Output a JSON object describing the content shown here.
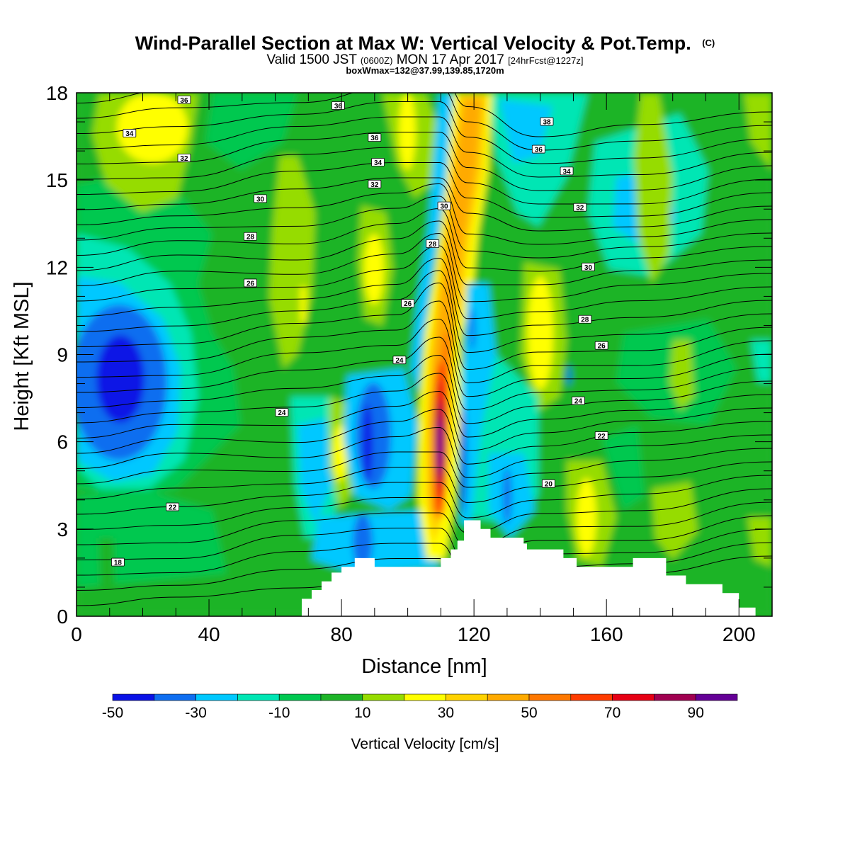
{
  "chart_data": {
    "type": "heatmap",
    "title": "Wind-Parallel Section at Max W: Vertical Velocity & Pot.Temp.",
    "title_mark": "(C)",
    "subtitle_parts": {
      "a": "Valid 1500 JST ",
      "b": "(0600Z)",
      "c": " MON 17 Apr 2017 ",
      "d": "[24hrFcst@1227z]"
    },
    "info_line": "boxWmax=132@37.99,139.85,1720m",
    "xlabel": "Distance [nm]",
    "ylabel": "Height [Kft MSL]",
    "xlim": [
      0,
      210
    ],
    "ylim": [
      0,
      18
    ],
    "x_ticks": [
      0,
      40,
      80,
      120,
      160,
      200
    ],
    "x_tick_labels": [
      "0",
      "40",
      "80",
      "120",
      "160",
      "200"
    ],
    "y_ticks": [
      0,
      3,
      6,
      9,
      12,
      15,
      18
    ],
    "y_tick_labels": [
      "0",
      "3",
      "6",
      "9",
      "12",
      "15",
      "18"
    ],
    "colorbar": {
      "title": "Vertical Velocity [cm/s]",
      "levels": [
        -50,
        -40,
        -30,
        -20,
        -10,
        0,
        10,
        20,
        30,
        40,
        50,
        60,
        70,
        80,
        90,
        100
      ],
      "tick_values": [
        -50,
        -30,
        -10,
        10,
        30,
        50,
        70,
        90
      ],
      "tick_labels": [
        "-50",
        "-30",
        "-10",
        "10",
        "30",
        "50",
        "70",
        "90"
      ],
      "colors": [
        "#0a12e6",
        "#0f6ef0",
        "#00c8ff",
        "#00e6b4",
        "#00c850",
        "#1eb428",
        "#96dc00",
        "#ffff00",
        "#ffd200",
        "#ffaa00",
        "#ff7800",
        "#ff3c00",
        "#e60014",
        "#a00050",
        "#640096"
      ]
    },
    "terrain": [
      [
        68,
        0.6
      ],
      [
        71,
        0.6
      ],
      [
        71,
        0.9
      ],
      [
        74,
        0.9
      ],
      [
        74,
        1.2
      ],
      [
        77,
        1.2
      ],
      [
        77,
        1.5
      ],
      [
        80,
        1.5
      ],
      [
        80,
        1.7
      ],
      [
        84,
        1.7
      ],
      [
        84,
        2.0
      ],
      [
        90,
        2.0
      ],
      [
        90,
        1.7
      ],
      [
        110,
        1.7
      ],
      [
        110,
        2.0
      ],
      [
        113,
        2.0
      ],
      [
        113,
        2.3
      ],
      [
        115,
        2.3
      ],
      [
        115,
        2.6
      ],
      [
        117,
        2.6
      ],
      [
        117,
        3.3
      ],
      [
        122,
        3.3
      ],
      [
        122,
        3.0
      ],
      [
        125,
        3.0
      ],
      [
        125,
        2.7
      ],
      [
        135,
        2.7
      ],
      [
        135,
        2.5
      ],
      [
        136,
        2.5
      ],
      [
        136,
        2.3
      ],
      [
        147,
        2.3
      ],
      [
        147,
        2.0
      ],
      [
        151,
        2.0
      ],
      [
        151,
        1.7
      ],
      [
        168,
        1.7
      ],
      [
        168,
        2.0
      ],
      [
        178,
        2.0
      ],
      [
        178,
        1.4
      ],
      [
        184,
        1.4
      ],
      [
        184,
        1.1
      ],
      [
        195,
        1.1
      ],
      [
        195,
        0.8
      ],
      [
        200,
        0.8
      ],
      [
        200,
        0.3
      ],
      [
        205,
        0.3
      ]
    ],
    "contour_labels": [
      {
        "text": "36",
        "x": 32.5,
        "y": 17.75
      },
      {
        "text": "36",
        "x": 79,
        "y": 17.55
      },
      {
        "text": "38",
        "x": 142,
        "y": 17.0
      },
      {
        "text": "34",
        "x": 16,
        "y": 16.6
      },
      {
        "text": "36",
        "x": 90,
        "y": 16.45
      },
      {
        "text": "36",
        "x": 139.5,
        "y": 16.05
      },
      {
        "text": "32",
        "x": 32.5,
        "y": 15.75
      },
      {
        "text": "34",
        "x": 91,
        "y": 15.6
      },
      {
        "text": "34",
        "x": 148,
        "y": 15.3
      },
      {
        "text": "32",
        "x": 90,
        "y": 14.85
      },
      {
        "text": "30",
        "x": 55.5,
        "y": 14.35
      },
      {
        "text": "30",
        "x": 111,
        "y": 14.1
      },
      {
        "text": "32",
        "x": 152,
        "y": 14.05
      },
      {
        "text": "28",
        "x": 52.5,
        "y": 13.05
      },
      {
        "text": "28",
        "x": 107.5,
        "y": 12.8
      },
      {
        "text": "30",
        "x": 154.5,
        "y": 12.0
      },
      {
        "text": "26",
        "x": 52.5,
        "y": 11.45
      },
      {
        "text": "26",
        "x": 100,
        "y": 10.75
      },
      {
        "text": "28",
        "x": 153.5,
        "y": 10.2
      },
      {
        "text": "26",
        "x": 158.5,
        "y": 9.3
      },
      {
        "text": "24",
        "x": 97.5,
        "y": 8.8
      },
      {
        "text": "24",
        "x": 62,
        "y": 7.0
      },
      {
        "text": "24",
        "x": 151.5,
        "y": 7.4
      },
      {
        "text": "22",
        "x": 158.5,
        "y": 6.2
      },
      {
        "text": "20",
        "x": 142.5,
        "y": 4.55
      },
      {
        "text": "22",
        "x": 29,
        "y": 3.75
      },
      {
        "text": "18",
        "x": 12.5,
        "y": 1.85
      }
    ]
  }
}
